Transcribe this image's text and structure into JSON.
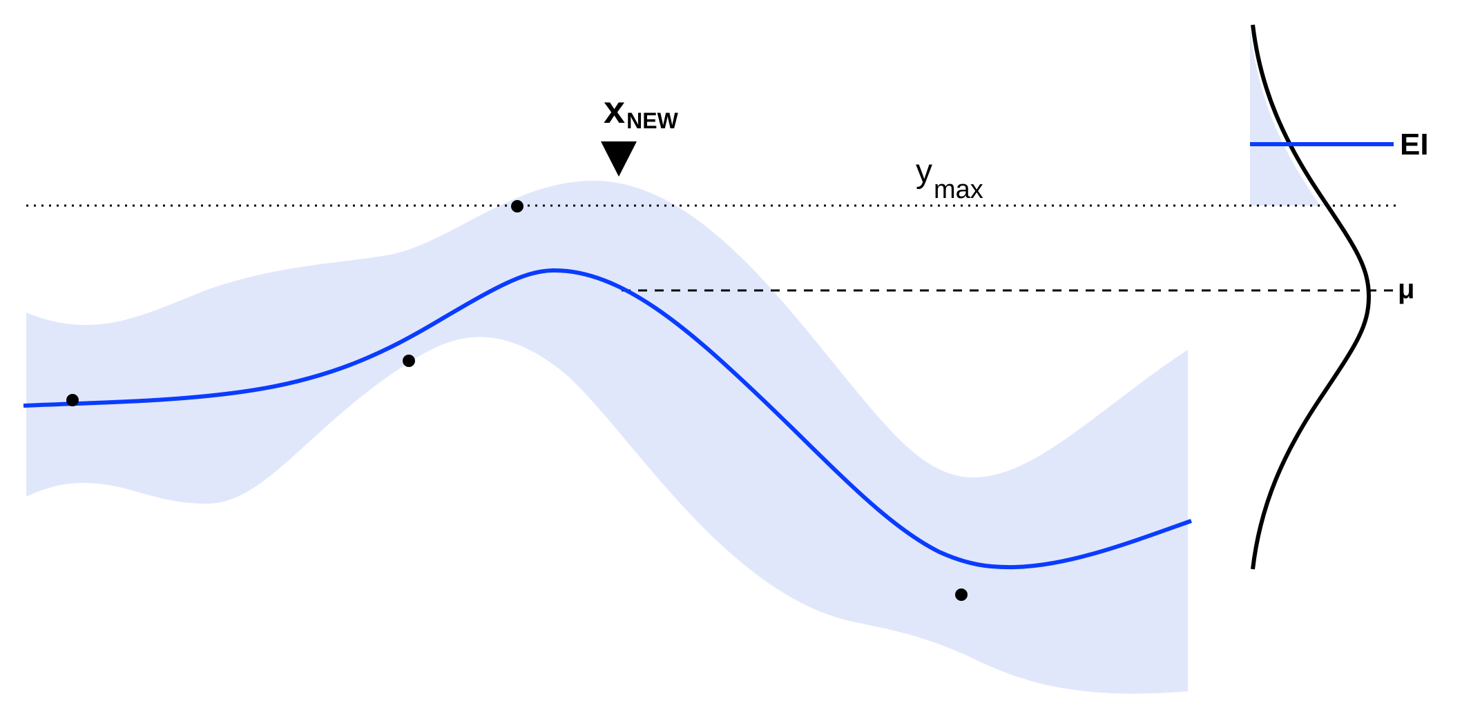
{
  "diagram": {
    "labels": {
      "x_new_main": "x",
      "x_new_sub": "NEW",
      "y_max_main": "y",
      "y_max_sub": "max",
      "mu": "μ",
      "ei": "EI"
    },
    "observations": [
      {
        "name": "observation-point-1"
      },
      {
        "name": "observation-point-2"
      },
      {
        "name": "observation-point-3"
      },
      {
        "name": "observation-point-4"
      }
    ],
    "colors": {
      "mean_curve": "#0a3cff",
      "uncertainty_band": "#e1e7fb",
      "points": "#000000",
      "density_curve": "#000000",
      "ei_line": "#0a3cff"
    },
    "icons": {
      "x_new_marker": "down-triangle-icon"
    }
  }
}
